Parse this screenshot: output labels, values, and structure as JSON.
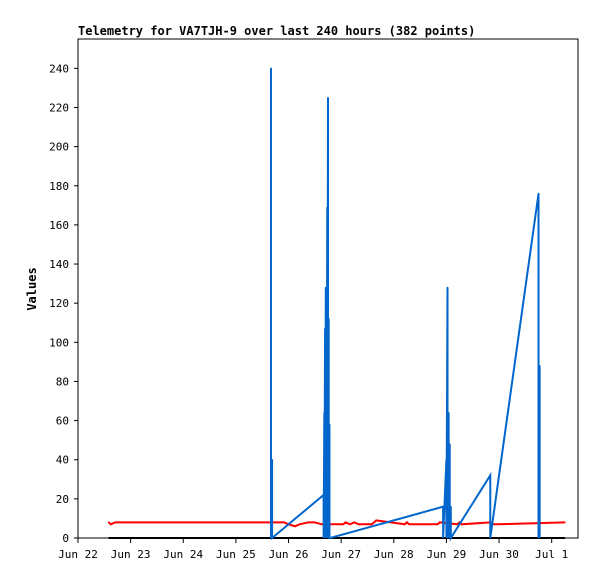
{
  "chart_data": {
    "type": "line",
    "title": "Telemetry for VA7TJH-9 over last 240 hours (382 points)",
    "xlabel": "",
    "ylabel": "Values",
    "ylim": [
      0,
      255
    ],
    "xlim": [
      "2024-06-22T00:00",
      "2024-07-01T12:00"
    ],
    "x_tick_labels": [
      "Jun 22",
      "Jun 23",
      "Jun 24",
      "Jun 25",
      "Jun 26",
      "Jun 27",
      "Jun 28",
      "Jun 29",
      "Jun 30",
      "Jul 1"
    ],
    "x_ticks": [
      "2024-06-22T00:00",
      "2024-06-23T00:00",
      "2024-06-24T00:00",
      "2024-06-25T00:00",
      "2024-06-26T00:00",
      "2024-06-27T00:00",
      "2024-06-28T00:00",
      "2024-06-29T00:00",
      "2024-06-30T00:00",
      "2024-07-01T00:00"
    ],
    "y_ticks": [
      0,
      20,
      40,
      60,
      80,
      100,
      120,
      140,
      160,
      180,
      200,
      220,
      240
    ],
    "grid": false,
    "legend": "none",
    "series": [
      {
        "color": "#000000",
        "style": "line",
        "x": [
          "2024-06-22T14:00",
          "2024-07-01T06:00"
        ],
        "values": [
          0,
          0
        ]
      },
      {
        "color": "#ff0000",
        "style": "line",
        "x": [
          "2024-06-22T14:00",
          "2024-06-22T15:00",
          "2024-06-22T17:00",
          "2024-06-25T22:00",
          "2024-06-26T00:00",
          "2024-06-26T03:00",
          "2024-06-26T05:00",
          "2024-06-26T09:00",
          "2024-06-26T12:00",
          "2024-06-26T15:00",
          "2024-06-26T17:00",
          "2024-06-27T01:00",
          "2024-06-27T02:00",
          "2024-06-27T04:00",
          "2024-06-27T06:00",
          "2024-06-27T08:00",
          "2024-06-27T10:00",
          "2024-06-27T14:00",
          "2024-06-27T16:00",
          "2024-06-28T05:00",
          "2024-06-28T06:00",
          "2024-06-28T07:00",
          "2024-06-28T08:00",
          "2024-06-28T20:00",
          "2024-06-28T21:00",
          "2024-06-29T05:00",
          "2024-06-29T06:00",
          "2024-06-29T07:00",
          "2024-06-29T20:00",
          "2024-06-29T21:00",
          "2024-06-29T23:00",
          "2024-07-01T06:00"
        ],
        "values": [
          8,
          7,
          8,
          8,
          7,
          6,
          7,
          8,
          8,
          7,
          7,
          7,
          8,
          7,
          8,
          7,
          7,
          7,
          9,
          7,
          8,
          7,
          7,
          7,
          8,
          7,
          8,
          7,
          8,
          7,
          7,
          8
        ]
      },
      {
        "color": "#0066cc",
        "style": "spikes",
        "x": [
          "2024-06-25T16:00",
          "2024-06-25T16:30",
          "2024-06-26T16:00",
          "2024-06-26T16:20",
          "2024-06-26T16:40",
          "2024-06-26T17:00",
          "2024-06-26T17:20",
          "2024-06-26T17:40",
          "2024-06-26T18:00",
          "2024-06-26T18:20",
          "2024-06-26T18:40",
          "2024-06-26T19:00",
          "2024-06-28T22:30",
          "2024-06-29T00:00",
          "2024-06-29T00:30",
          "2024-06-29T01:00",
          "2024-06-29T01:30",
          "2024-06-29T02:00",
          "2024-06-29T20:00",
          "2024-06-30T18:00",
          "2024-06-30T18:30"
        ],
        "values": [
          240,
          40,
          22,
          64,
          107,
          128,
          57,
          169,
          225,
          112,
          58,
          0,
          16,
          40,
          128,
          64,
          48,
          16,
          32,
          176,
          88
        ]
      }
    ]
  }
}
